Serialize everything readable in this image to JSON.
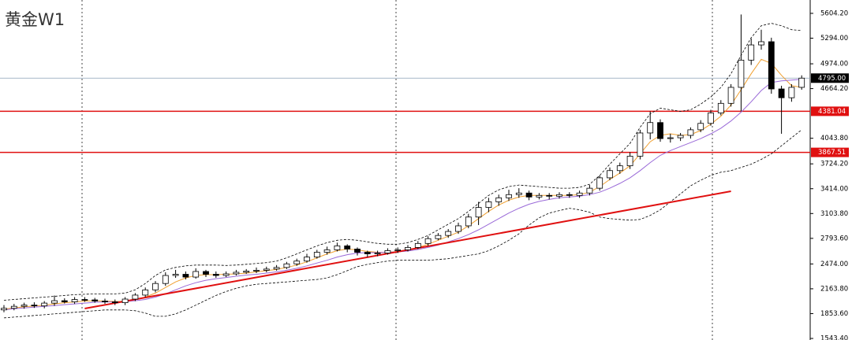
{
  "chart_data": {
    "type": "candlestick",
    "title": "黄金W1",
    "ylim": [
      1524,
      5771
    ],
    "yticks": [
      {
        "value": 5604.2,
        "label": "5604.20"
      },
      {
        "value": 5294,
        "label": "5294.00"
      },
      {
        "value": 4974,
        "label": "4974.00"
      },
      {
        "value": 4664.2,
        "label": "4664.20"
      },
      {
        "value": 4043.8,
        "label": "4043.80"
      },
      {
        "value": 3724.2,
        "label": "3724.20"
      },
      {
        "value": 3414,
        "label": "3414.00"
      },
      {
        "value": 3103.8,
        "label": "3103.80"
      },
      {
        "value": 2793.6,
        "label": "2793.60"
      },
      {
        "value": 2474,
        "label": "2474.00"
      },
      {
        "value": 2163.8,
        "label": "2163.80"
      },
      {
        "value": 1853.6,
        "label": "1853.60"
      },
      {
        "value": 1543.4,
        "label": "1543.40"
      }
    ],
    "open": [
      1900,
      1920,
      1945,
      1960,
      1950,
      1985,
      2015,
      2000,
      2030,
      2025,
      2010,
      2000,
      1990,
      2035,
      2085,
      2150,
      2230,
      2330,
      2345,
      2310,
      2380,
      2345,
      2330,
      2350,
      2370,
      2385,
      2395,
      2410,
      2430,
      2475,
      2510,
      2560,
      2620,
      2650,
      2700,
      2660,
      2620,
      2600,
      2610,
      2640,
      2650,
      2680,
      2730,
      2790,
      2830,
      2880,
      2950,
      3060,
      3180,
      3250,
      3300,
      3340,
      3360,
      3310,
      3330,
      3320,
      3340,
      3330,
      3360,
      3420,
      3550,
      3640,
      3700,
      3820,
      4110,
      4240,
      4040,
      4050,
      4080,
      4150,
      4230,
      4360,
      4480,
      4680,
      5020,
      5210,
      5250,
      4660,
      4550,
      4680
    ],
    "high": [
      1960,
      1975,
      1990,
      1995,
      2010,
      2080,
      2045,
      2060,
      2060,
      2050,
      2040,
      2030,
      2060,
      2110,
      2180,
      2260,
      2370,
      2400,
      2380,
      2420,
      2400,
      2380,
      2380,
      2400,
      2410,
      2430,
      2440,
      2460,
      2500,
      2540,
      2600,
      2650,
      2690,
      2740,
      2720,
      2680,
      2640,
      2640,
      2670,
      2680,
      2710,
      2760,
      2820,
      2860,
      2910,
      2990,
      3100,
      3250,
      3300,
      3340,
      3400,
      3420,
      3390,
      3360,
      3360,
      3370,
      3370,
      3390,
      3460,
      3580,
      3680,
      3740,
      3870,
      4150,
      4380,
      4280,
      4100,
      4110,
      4180,
      4270,
      4400,
      4520,
      4720,
      5590,
      5290,
      5400,
      5300,
      4700,
      4720,
      4830
    ],
    "low": [
      1870,
      1895,
      1915,
      1925,
      1920,
      1950,
      1980,
      1975,
      2000,
      1990,
      1975,
      1960,
      1960,
      2010,
      2060,
      2120,
      2200,
      2300,
      2280,
      2290,
      2310,
      2300,
      2310,
      2330,
      2350,
      2360,
      2370,
      2390,
      2410,
      2450,
      2490,
      2540,
      2590,
      2630,
      2620,
      2580,
      2560,
      2570,
      2590,
      2610,
      2630,
      2660,
      2700,
      2770,
      2800,
      2850,
      2920,
      2960,
      3120,
      3200,
      3260,
      3300,
      3270,
      3280,
      3280,
      3290,
      3300,
      3300,
      3330,
      3390,
      3520,
      3600,
      3660,
      3780,
      4030,
      4000,
      3990,
      4010,
      4040,
      4120,
      4200,
      4330,
      4440,
      4380,
      4960,
      5150,
      4600,
      4100,
      4500,
      4650
    ],
    "close": [
      1920,
      1945,
      1960,
      1950,
      1985,
      2015,
      2000,
      2030,
      2025,
      2010,
      2000,
      1990,
      2035,
      2085,
      2150,
      2230,
      2330,
      2345,
      2310,
      2380,
      2345,
      2330,
      2350,
      2370,
      2385,
      2395,
      2410,
      2430,
      2475,
      2510,
      2560,
      2620,
      2650,
      2700,
      2660,
      2620,
      2600,
      2610,
      2640,
      2650,
      2680,
      2730,
      2790,
      2830,
      2880,
      2950,
      3060,
      3180,
      3250,
      3300,
      3340,
      3360,
      3310,
      3330,
      3320,
      3340,
      3330,
      3360,
      3420,
      3550,
      3640,
      3700,
      3820,
      4110,
      4240,
      4040,
      4050,
      4080,
      4150,
      4230,
      4360,
      4480,
      4680,
      5020,
      5210,
      5250,
      4660,
      4550,
      4680,
      4795
    ],
    "lines": [
      {
        "color": "#f0a030",
        "dashed": false,
        "values": [
          1910,
          1925,
          1940,
          1950,
          1960,
          1975,
          1990,
          2000,
          2010,
          2015,
          2010,
          2005,
          2010,
          2030,
          2060,
          2110,
          2180,
          2250,
          2300,
          2330,
          2340,
          2340,
          2345,
          2350,
          2360,
          2375,
          2390,
          2405,
          2430,
          2460,
          2500,
          2550,
          2600,
          2640,
          2660,
          2650,
          2630,
          2620,
          2620,
          2630,
          2650,
          2680,
          2720,
          2770,
          2820,
          2870,
          2950,
          3040,
          3130,
          3210,
          3270,
          3310,
          3330,
          3330,
          3330,
          3330,
          3330,
          3340,
          3370,
          3440,
          3530,
          3610,
          3700,
          3850,
          4000,
          4080,
          4100,
          4080,
          4090,
          4140,
          4220,
          4320,
          4460,
          4650,
          4850,
          5030,
          4980,
          4830,
          4700,
          4680
        ]
      },
      {
        "color": "#9a6ad8",
        "dashed": false,
        "values": [
          1900,
          1915,
          1925,
          1935,
          1945,
          1955,
          1965,
          1975,
          1985,
          1995,
          2000,
          2000,
          2005,
          2015,
          2030,
          2060,
          2100,
          2150,
          2200,
          2240,
          2270,
          2290,
          2305,
          2320,
          2335,
          2345,
          2360,
          2375,
          2395,
          2420,
          2450,
          2485,
          2520,
          2560,
          2590,
          2610,
          2615,
          2615,
          2620,
          2625,
          2635,
          2655,
          2680,
          2710,
          2750,
          2790,
          2840,
          2900,
          2970,
          3040,
          3110,
          3170,
          3220,
          3255,
          3280,
          3300,
          3310,
          3320,
          3340,
          3370,
          3420,
          3480,
          3550,
          3640,
          3740,
          3830,
          3890,
          3940,
          3990,
          4040,
          4100,
          4170,
          4260,
          4370,
          4500,
          4640,
          4740,
          4760,
          4770,
          4780
        ]
      },
      {
        "color": "#000000",
        "dashed": true,
        "values": [
          2020,
          2030,
          2040,
          2050,
          2060,
          2070,
          2080,
          2090,
          2095,
          2100,
          2100,
          2100,
          2110,
          2150,
          2230,
          2330,
          2400,
          2430,
          2450,
          2460,
          2460,
          2460,
          2455,
          2460,
          2470,
          2480,
          2490,
          2510,
          2550,
          2600,
          2650,
          2700,
          2740,
          2770,
          2780,
          2770,
          2750,
          2730,
          2720,
          2720,
          2740,
          2780,
          2830,
          2900,
          2970,
          3040,
          3130,
          3230,
          3330,
          3400,
          3440,
          3460,
          3450,
          3440,
          3430,
          3420,
          3420,
          3430,
          3470,
          3580,
          3720,
          3850,
          3980,
          4180,
          4350,
          4420,
          4400,
          4380,
          4400,
          4470,
          4560,
          4680,
          4850,
          5080,
          5300,
          5450,
          5480,
          5450,
          5400,
          5390
        ]
      },
      {
        "color": "#000000",
        "dashed": true,
        "values": [
          1800,
          1810,
          1820,
          1830,
          1840,
          1850,
          1860,
          1870,
          1880,
          1890,
          1900,
          1900,
          1900,
          1890,
          1860,
          1820,
          1820,
          1850,
          1900,
          1960,
          2020,
          2080,
          2130,
          2170,
          2200,
          2220,
          2230,
          2240,
          2250,
          2260,
          2270,
          2280,
          2300,
          2340,
          2390,
          2440,
          2470,
          2490,
          2510,
          2520,
          2520,
          2520,
          2520,
          2530,
          2540,
          2560,
          2580,
          2600,
          2640,
          2700,
          2770,
          2850,
          2960,
          3050,
          3110,
          3140,
          3170,
          3150,
          3120,
          3060,
          3040,
          3030,
          3020,
          3030,
          3080,
          3150,
          3250,
          3350,
          3450,
          3520,
          3580,
          3620,
          3640,
          3680,
          3720,
          3780,
          3850,
          3950,
          4050,
          4150
        ]
      }
    ],
    "trendline": {
      "x": [
        8,
        72
      ],
      "values": [
        1917,
        3382
      ],
      "color": "#e01010"
    },
    "levels": [
      {
        "value": 4381.04,
        "color": "#e01010"
      },
      {
        "value": 3867.51,
        "color": "#e01010"
      }
    ],
    "last_price": {
      "value": 4795,
      "label": "4795.00"
    }
  }
}
